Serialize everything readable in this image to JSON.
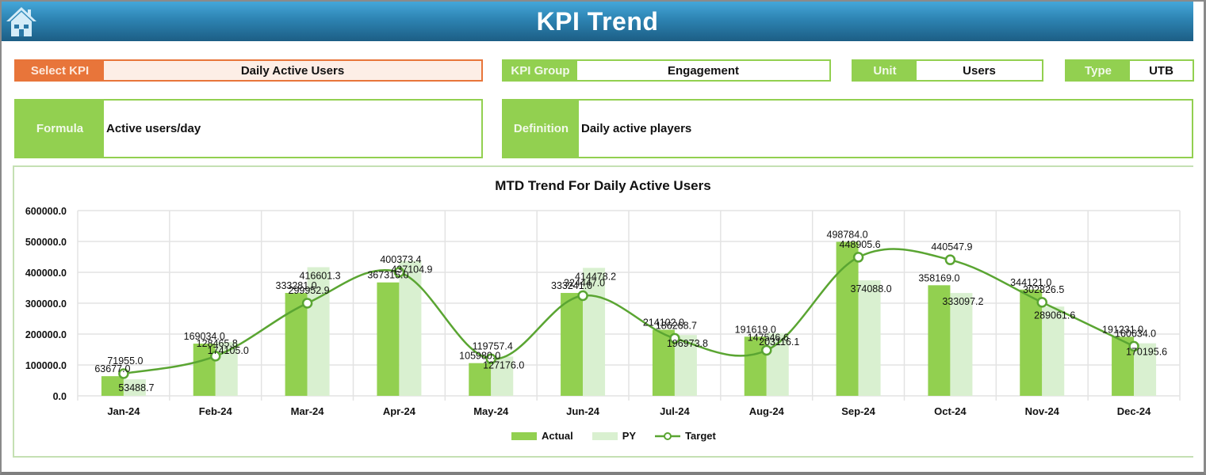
{
  "header": {
    "title": "KPI Trend",
    "home_icon": "home-icon"
  },
  "fields": {
    "select_kpi": {
      "label": "Select KPI",
      "value": "Daily Active Users"
    },
    "kpi_group": {
      "label": "KPI Group",
      "value": "Engagement"
    },
    "unit": {
      "label": "Unit",
      "value": "Users"
    },
    "type": {
      "label": "Type",
      "value": "UTB"
    },
    "formula": {
      "label": "Formula",
      "value": "Active users/day"
    },
    "definition": {
      "label": "Definition",
      "value": "Daily active players"
    }
  },
  "colors": {
    "actual": "#92d050",
    "py": "#d9f0d0",
    "target": "#5aa532",
    "header": "#2d83b2",
    "orange": "#e8753a"
  },
  "legend": {
    "actual": "Actual",
    "py": "PY",
    "target": "Target"
  },
  "chart_data": {
    "type": "bar",
    "title": "MTD Trend For Daily Active Users",
    "xlabel": "",
    "ylabel": "",
    "ylim": [
      0,
      600000
    ],
    "yticks": [
      "0.0",
      "100000.0",
      "200000.0",
      "300000.0",
      "400000.0",
      "500000.0",
      "600000.0"
    ],
    "grid": true,
    "legend_position": "bottom",
    "categories": [
      "Jan-24",
      "Feb-24",
      "Mar-24",
      "Apr-24",
      "May-24",
      "Jun-24",
      "Jul-24",
      "Aug-24",
      "Sep-24",
      "Oct-24",
      "Nov-24",
      "Dec-24"
    ],
    "series": [
      {
        "name": "Actual",
        "type": "bar",
        "values": [
          63677.0,
          169034.0,
          333281.0,
          367315.0,
          105980.0,
          333241.0,
          214102.0,
          191619.0,
          498784.0,
          358169.0,
          344121.0,
          191231.0
        ]
      },
      {
        "name": "PY",
        "type": "bar",
        "values": [
          53488.7,
          174105.0,
          416601.3,
          437104.9,
          127176.0,
          414478.2,
          196973.8,
          203116.1,
          374088.0,
          333097.2,
          289061.6,
          170195.6
        ]
      },
      {
        "name": "Target",
        "type": "line",
        "values": [
          71955.0,
          128465.8,
          299952.9,
          400373.4,
          119757.4,
          324447.0,
          186268.7,
          147546.6,
          448905.6,
          440547.9,
          302826.5,
          160634.0
        ]
      }
    ]
  }
}
